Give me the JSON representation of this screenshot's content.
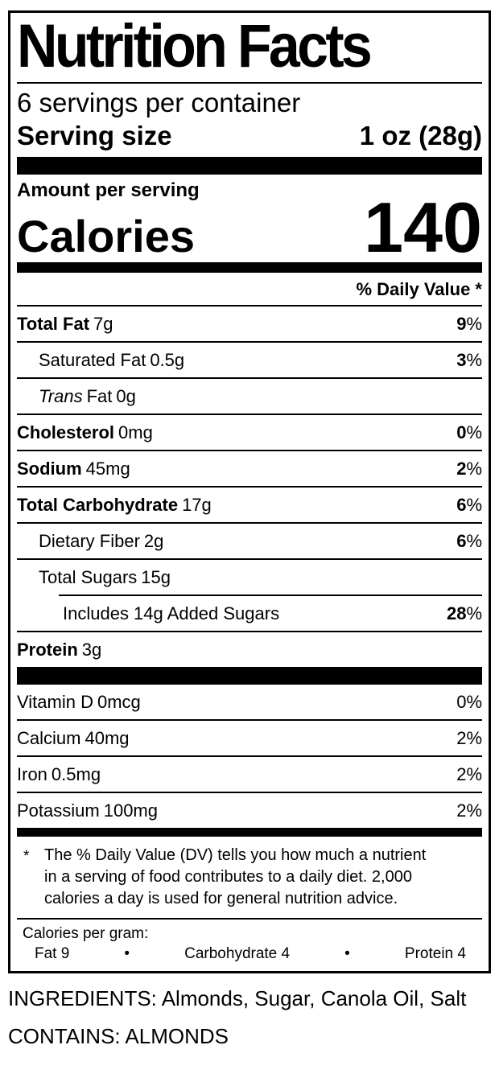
{
  "colors": {
    "text": "#000000",
    "background": "#ffffff",
    "rule": "#000000"
  },
  "label": {
    "title": "Nutrition Facts",
    "servings_per_container": "6 servings per container",
    "serving_size": {
      "label": "Serving size",
      "value": "1 oz (28g)"
    },
    "amount_per_serving": "Amount per serving",
    "calories": {
      "label": "Calories",
      "value": "140"
    },
    "daily_value_header": "% Daily Value *",
    "nutrients": [
      {
        "name": "Total Fat",
        "amount": "7g",
        "dv": "9",
        "pct": "%"
      },
      {
        "name": "Saturated Fat",
        "amount": "0.5g",
        "dv": "3",
        "pct": "%"
      },
      {
        "name_italic": "Trans",
        "name": "Fat",
        "amount": "0g",
        "dv": "",
        "pct": ""
      },
      {
        "name": "Cholesterol",
        "amount": "0mg",
        "dv": "0",
        "pct": "%"
      },
      {
        "name": "Sodium",
        "amount": "45mg",
        "dv": "2",
        "pct": "%"
      },
      {
        "name": "Total Carbohydrate",
        "amount": "17g",
        "dv": "6",
        "pct": "%"
      },
      {
        "name": "Dietary Fiber",
        "amount": "2g",
        "dv": "6",
        "pct": "%"
      },
      {
        "name": "Total Sugars",
        "amount": "15g",
        "dv": "",
        "pct": ""
      },
      {
        "name": "Includes 14g Added Sugars",
        "amount": "",
        "dv": "28",
        "pct": "%"
      },
      {
        "name": "Protein",
        "amount": "3g",
        "dv": "",
        "pct": ""
      }
    ],
    "vitamins": [
      {
        "name": "Vitamin D",
        "amount": "0mcg",
        "dv": "0",
        "pct": "%"
      },
      {
        "name": "Calcium",
        "amount": "40mg",
        "dv": "2",
        "pct": "%"
      },
      {
        "name": "Iron",
        "amount": "0.5mg",
        "dv": "2",
        "pct": "%"
      },
      {
        "name": "Potassium",
        "amount": "100mg",
        "dv": "2",
        "pct": "%"
      }
    ],
    "footnote": {
      "marker": "*",
      "text": "The % Daily Value (DV) tells you how much a nutrient in a serving of food contributes to a daily diet. 2,000 calories a day is used for general nutrition advice."
    },
    "calories_per_gram": {
      "label": "Calories per gram:",
      "bullet": "•",
      "items": [
        "Fat 9",
        "Carbohydrate 4",
        "Protein 4"
      ]
    }
  },
  "below_label": {
    "ingredients": "INGREDIENTS: Almonds, Sugar, Canola Oil, Salt",
    "contains": "CONTAINS: ALMONDS"
  }
}
